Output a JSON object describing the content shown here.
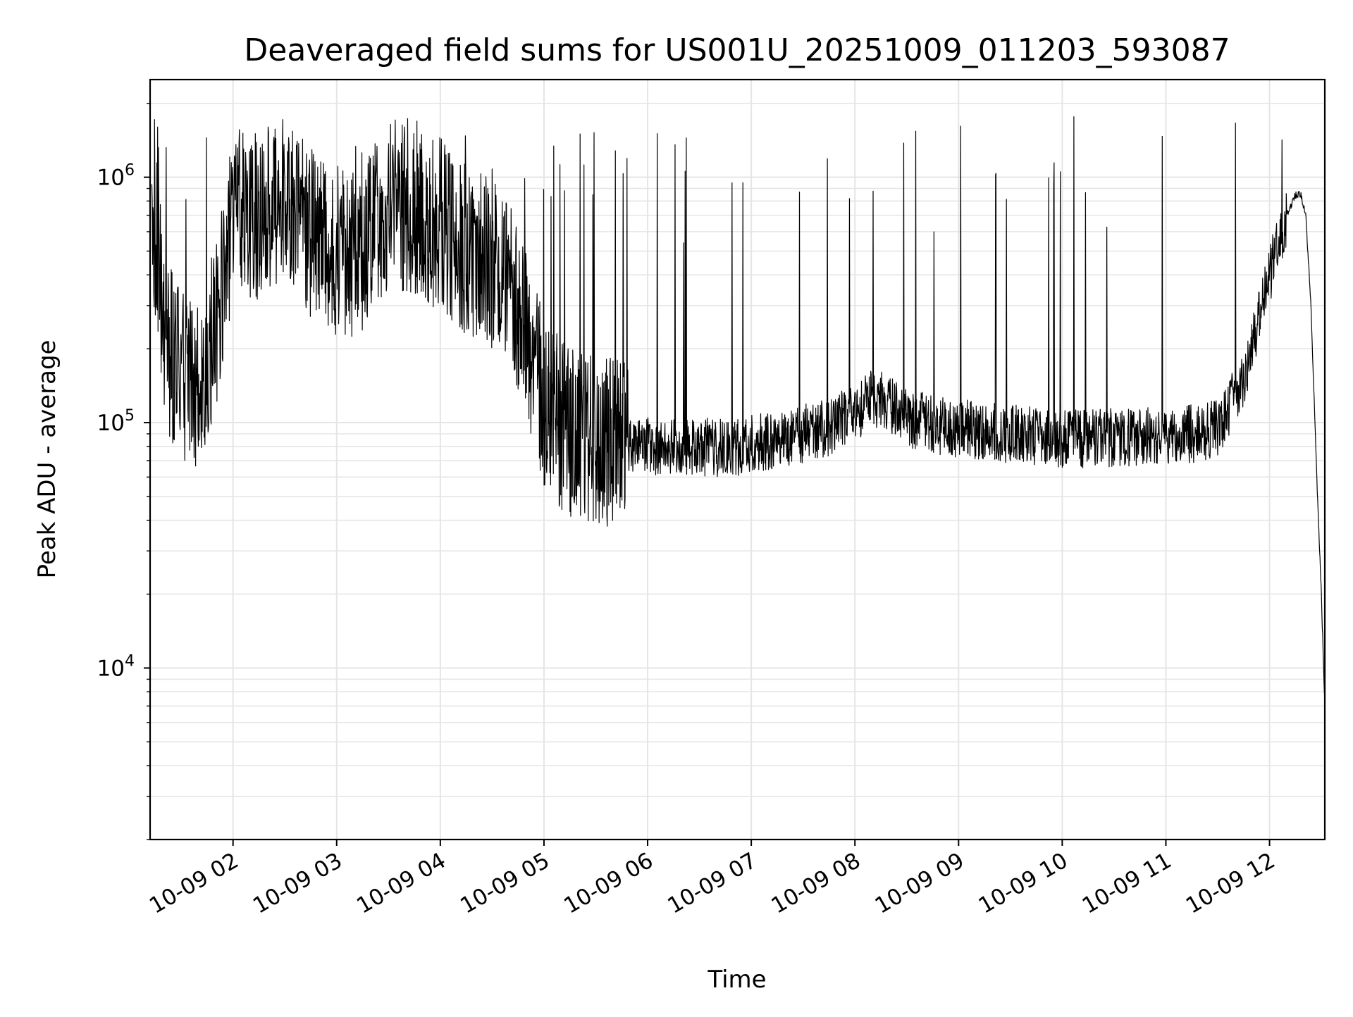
{
  "chart_data": {
    "type": "line",
    "title": "Deaveraged field sums for US001U_20251009_011203_593087",
    "xlabel": "Time",
    "ylabel": "Peak ADU - average",
    "y_scale": "log",
    "ylim": [
      2000,
      2500000
    ],
    "xlim": [
      "2025-10-09 01:12",
      "2025-10-09 12:32"
    ],
    "grid": true,
    "legend": "none",
    "line_color": "#000000",
    "grid_color": "#e5e5e5",
    "x_ticks": [
      {
        "label": "10-09 02",
        "x": "2025-10-09 02:00"
      },
      {
        "label": "10-09 03",
        "x": "2025-10-09 03:00"
      },
      {
        "label": "10-09 04",
        "x": "2025-10-09 04:00"
      },
      {
        "label": "10-09 05",
        "x": "2025-10-09 05:00"
      },
      {
        "label": "10-09 06",
        "x": "2025-10-09 06:00"
      },
      {
        "label": "10-09 07",
        "x": "2025-10-09 07:00"
      },
      {
        "label": "10-09 08",
        "x": "2025-10-09 08:00"
      },
      {
        "label": "10-09 09",
        "x": "2025-10-09 09:00"
      },
      {
        "label": "10-09 10",
        "x": "2025-10-09 10:00"
      },
      {
        "label": "10-09 11",
        "x": "2025-10-09 11:00"
      },
      {
        "label": "10-09 12",
        "x": "2025-10-09 12:00"
      }
    ],
    "y_ticks": [
      {
        "base": "10",
        "exp": "4",
        "value": 10000
      },
      {
        "base": "10",
        "exp": "5",
        "value": 100000
      },
      {
        "base": "10",
        "exp": "6",
        "value": 1000000
      }
    ],
    "series": [
      {
        "x": [
          "2025-10-09 01:13",
          "2025-10-09 01:15",
          "2025-10-09 01:18",
          "2025-10-09 01:22",
          "2025-10-09 01:30",
          "2025-10-09 01:40",
          "2025-10-09 01:50",
          "2025-10-09 02:00",
          "2025-10-09 02:15",
          "2025-10-09 02:30",
          "2025-10-09 02:45",
          "2025-10-09 03:00",
          "2025-10-09 03:15",
          "2025-10-09 03:30",
          "2025-10-09 03:45",
          "2025-10-09 04:00",
          "2025-10-09 04:15",
          "2025-10-09 04:30",
          "2025-10-09 04:45",
          "2025-10-09 05:00",
          "2025-10-09 05:15",
          "2025-10-09 05:30",
          "2025-10-09 05:45",
          "2025-10-09 06:00",
          "2025-10-09 06:15",
          "2025-10-09 06:30",
          "2025-10-09 06:45",
          "2025-10-09 07:00",
          "2025-10-09 07:15",
          "2025-10-09 07:30",
          "2025-10-09 07:45",
          "2025-10-09 08:00",
          "2025-10-09 08:10",
          "2025-10-09 08:20",
          "2025-10-09 08:30",
          "2025-10-09 08:45",
          "2025-10-09 09:00",
          "2025-10-09 09:15",
          "2025-10-09 09:30",
          "2025-10-09 09:45",
          "2025-10-09 10:00",
          "2025-10-09 10:15",
          "2025-10-09 10:30",
          "2025-10-09 10:45",
          "2025-10-09 11:00",
          "2025-10-09 11:15",
          "2025-10-09 11:30",
          "2025-10-09 11:45",
          "2025-10-09 12:00",
          "2025-10-09 12:10",
          "2025-10-09 12:15",
          "2025-10-09 12:18",
          "2025-10-09 12:21",
          "2025-10-09 12:24",
          "2025-10-09 12:27",
          "2025-10-09 12:30",
          "2025-10-09 12:32"
        ],
        "y": [
          1000000,
          400000,
          360000,
          200000,
          160000,
          130000,
          250000,
          700000,
          700000,
          800000,
          600000,
          500000,
          500000,
          800000,
          700000,
          650000,
          500000,
          450000,
          300000,
          120000,
          90000,
          85000,
          80000,
          80000,
          78000,
          80000,
          78000,
          82000,
          85000,
          90000,
          95000,
          110000,
          125000,
          120000,
          105000,
          98000,
          95000,
          93000,
          90000,
          88000,
          85000,
          86000,
          87000,
          88000,
          88000,
          90000,
          95000,
          150000,
          400000,
          700000,
          850000,
          850000,
          700000,
          300000,
          70000,
          20000,
          7000
        ]
      }
    ]
  }
}
